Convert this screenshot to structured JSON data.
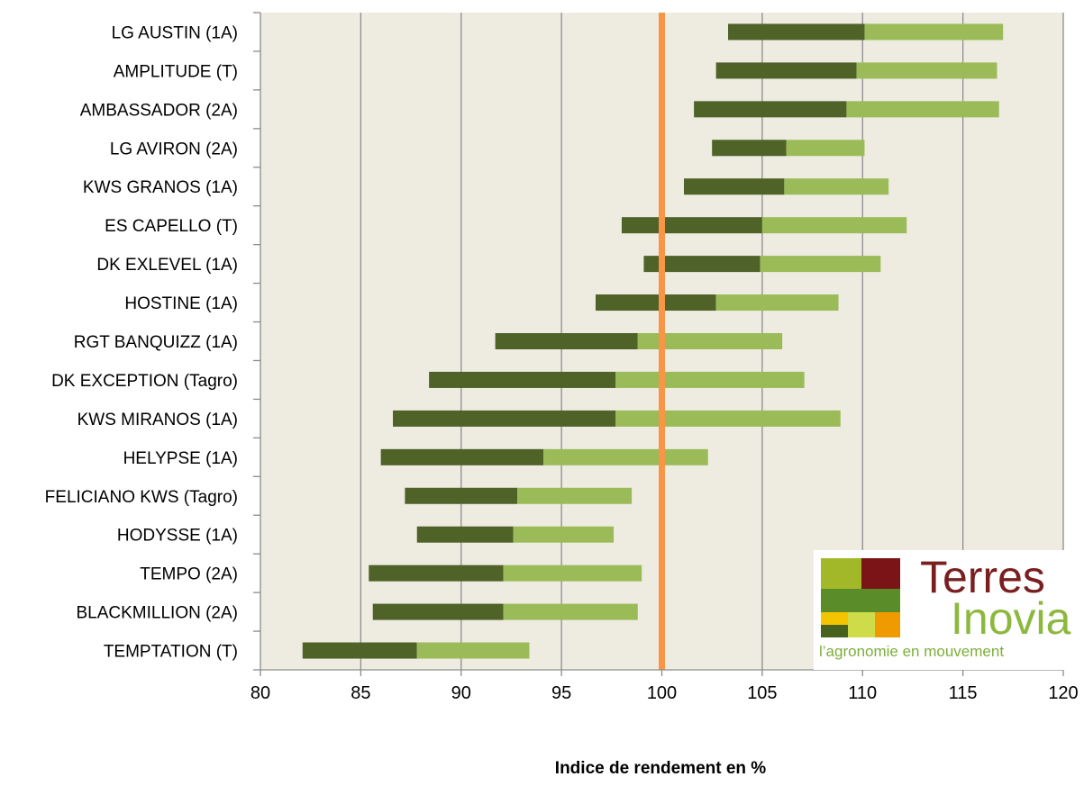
{
  "chart_data": {
    "type": "bar",
    "subtype": "horizontal-range-stacked",
    "categories": [
      "LG AUSTIN (1A)",
      "AMPLITUDE (T)",
      "AMBASSADOR (2A)",
      "LG AVIRON (2A)",
      "KWS GRANOS (1A)",
      "ES CAPELLO (T)",
      "DK EXLEVEL (1A)",
      "HOSTINE (1A)",
      "RGT BANQUIZZ (1A)",
      "DK EXCEPTION (Tagro)",
      "KWS MIRANOS (1A)",
      "HELYPSE (1A)",
      "FELICIANO KWS (Tagro)",
      "HODYSSE (1A)",
      "TEMPO (2A)",
      "BLACKMILLION (2A)",
      "TEMPTATION (T)"
    ],
    "series": [
      {
        "color": "#4f6228",
        "values": [
          [
            103.3,
            110.1
          ],
          [
            102.7,
            109.7
          ],
          [
            101.6,
            109.2
          ],
          [
            102.5,
            106.2
          ],
          [
            101.1,
            106.1
          ],
          [
            98.0,
            105.0
          ],
          [
            99.1,
            104.9
          ],
          [
            96.7,
            102.7
          ],
          [
            91.7,
            98.8
          ],
          [
            88.4,
            97.7
          ],
          [
            86.6,
            97.7
          ],
          [
            86.0,
            94.1
          ],
          [
            87.2,
            92.8
          ],
          [
            87.8,
            92.6
          ],
          [
            85.4,
            92.1
          ],
          [
            85.6,
            92.1
          ],
          [
            82.1,
            87.8
          ]
        ]
      },
      {
        "color": "#9bbb59",
        "values": [
          [
            110.1,
            117.0
          ],
          [
            109.7,
            116.7
          ],
          [
            109.2,
            116.8
          ],
          [
            106.2,
            110.1
          ],
          [
            106.1,
            111.3
          ],
          [
            105.0,
            112.2
          ],
          [
            104.9,
            110.9
          ],
          [
            102.7,
            108.8
          ],
          [
            98.8,
            106.0
          ],
          [
            97.7,
            107.1
          ],
          [
            97.7,
            108.9
          ],
          [
            94.1,
            102.3
          ],
          [
            92.8,
            98.5
          ],
          [
            92.6,
            97.6
          ],
          [
            92.1,
            99.0
          ],
          [
            92.1,
            98.8
          ],
          [
            87.8,
            93.4
          ]
        ]
      }
    ],
    "reference_line": {
      "value": 100,
      "color": "#f79646"
    },
    "xlabel": "Indice de rendement en %",
    "ylabel": "",
    "xlim": [
      80,
      120
    ],
    "xticks": [
      80,
      85,
      90,
      95,
      100,
      105,
      110,
      115,
      120
    ],
    "grid": "vertical",
    "plot_background": "#eeece1",
    "gridline_color": "#8c8c8c"
  },
  "logo": {
    "word1": "Terres",
    "word2": "Inovia",
    "tagline": "l’agronomie en mouvement",
    "colors": {
      "word1": "#7a1f1f",
      "word2": "#8db83f",
      "tagline": "#7cae3a",
      "tile_lime": "#a2b829",
      "tile_maroon": "#7a1416",
      "tile_green": "#5b8c2a",
      "tile_dark": "#46621e",
      "tile_yellow": "#f5c400",
      "tile_lightlime": "#cfdc4a",
      "tile_orange": "#ef9b00"
    }
  }
}
